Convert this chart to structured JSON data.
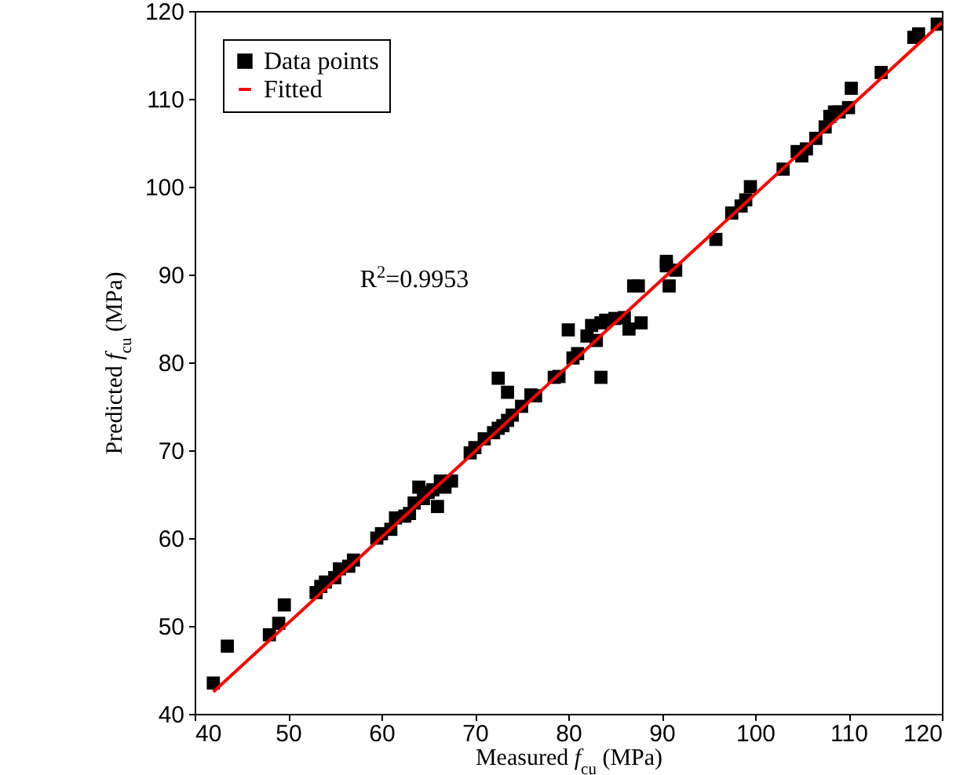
{
  "chart_data": {
    "type": "scatter",
    "xlabel": "Measured f$_{cu}$ (MPa)",
    "ylabel": "Predicted f$_{cu}$ (MPa)",
    "annotations": [
      "R$^{2}$=0.9953"
    ],
    "xlim": [
      40,
      120
    ],
    "ylim": [
      40,
      120
    ],
    "xticks": [
      40,
      50,
      60,
      70,
      80,
      90,
      100,
      110,
      120
    ],
    "yticks": [
      40,
      50,
      60,
      70,
      80,
      90,
      100,
      110,
      120
    ],
    "grid": false,
    "legend": "top left",
    "series": [
      {
        "name": "Data points",
        "marker": "square",
        "color": "#000000",
        "x": [
          42,
          43.5,
          48,
          49,
          49.6,
          53,
          53.5,
          54,
          55,
          55.5,
          56.5,
          57,
          59.5,
          60,
          61,
          61.5,
          62.5,
          63,
          63.5,
          64,
          64.5,
          65,
          65.5,
          66,
          66.3,
          66.8,
          67.5,
          69.5,
          70,
          71,
          72,
          72.5,
          72.5,
          73,
          73.5,
          73.5,
          74,
          75,
          76,
          76.5,
          78.5,
          79,
          80,
          80.5,
          81,
          82,
          82.5,
          83,
          83.5,
          83.5,
          84,
          85,
          86,
          86.5,
          87,
          87.5,
          87.8,
          90.5,
          90.5,
          90.8,
          91.5,
          95.8,
          97.5,
          98.5,
          99,
          99.5,
          103,
          104.5,
          105,
          105.5,
          106.5,
          107.5,
          108,
          108.5,
          109,
          110,
          110.3,
          113.5,
          117,
          117.5,
          119.5
        ],
        "values": [
          43.5,
          47.7,
          49,
          50.3,
          52.4,
          53.8,
          54.5,
          55,
          55.5,
          56.5,
          56.8,
          57.5,
          60,
          60.5,
          61,
          62.3,
          62.5,
          62.8,
          64,
          65.8,
          64.5,
          65.2,
          65.5,
          63.6,
          66.5,
          65.8,
          66.5,
          69.7,
          70.3,
          71.3,
          72,
          72.5,
          78.2,
          72.8,
          76.6,
          73.4,
          74,
          75,
          76.3,
          76.2,
          78.3,
          78.4,
          83.7,
          80.5,
          81,
          83,
          84.2,
          82.5,
          78.3,
          84.5,
          84.8,
          85,
          85.1,
          83.8,
          88.7,
          88.7,
          84.5,
          91,
          91.5,
          88.7,
          90.5,
          94,
          97,
          97.8,
          98.5,
          100,
          102,
          104,
          103.5,
          104.3,
          105.5,
          106.8,
          108,
          108.5,
          108.5,
          109,
          111.2,
          113,
          117,
          117.4,
          118.5
        ]
      },
      {
        "name": "Fitted",
        "type": "line",
        "line_style": "solid",
        "color": "#ff0000",
        "x": [
          42,
          120
        ],
        "values": [
          42.5,
          118.7
        ]
      }
    ]
  }
}
